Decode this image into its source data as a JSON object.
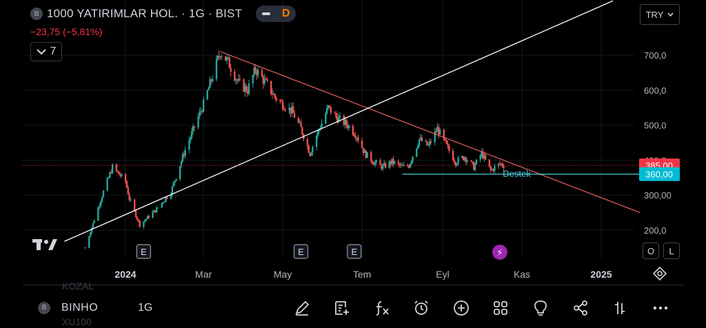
{
  "header": {
    "logo_letter": "B",
    "title": "1000 YATIRIMLAR HOL. · 1G · BIST",
    "delay_badge": "D",
    "change": "−23,75 (−5,81%)",
    "indicators_count": "7",
    "currency": "TRY"
  },
  "chart_data": {
    "type": "candlestick",
    "x_tick_labels": [
      "2024",
      "Mar",
      "May",
      "Tem",
      "Eyl",
      "Kas",
      "2025"
    ],
    "y_tick_labels": [
      "700,0",
      "600,0",
      "500,0",
      "400,0",
      "300,00",
      "200,0"
    ],
    "y_ticks": [
      700,
      600,
      500,
      400,
      300,
      200
    ],
    "ylim": [
      165,
      805
    ],
    "last_price": 385,
    "last_price_label": "385,00",
    "support_price": 360,
    "support_price_label": "360,00",
    "support_label": "Destek",
    "price_path": [
      [
        "2023-12-01",
        150
      ],
      [
        "2023-12-15",
        310
      ],
      [
        "2023-12-22",
        380
      ],
      [
        "2024-01-01",
        340
      ],
      [
        "2024-01-04",
        290
      ],
      [
        "2024-01-12",
        215
      ],
      [
        "2024-01-25",
        260
      ],
      [
        "2024-02-05",
        310
      ],
      [
        "2024-02-15",
        420
      ],
      [
        "2024-03-01",
        560
      ],
      [
        "2024-03-08",
        640
      ],
      [
        "2024-03-14",
        710
      ],
      [
        "2024-03-20",
        680
      ],
      [
        "2024-03-28",
        620
      ],
      [
        "2024-04-04",
        600
      ],
      [
        "2024-04-10",
        660
      ],
      [
        "2024-04-18",
        620
      ],
      [
        "2024-04-25",
        580
      ],
      [
        "2024-05-01",
        560
      ],
      [
        "2024-05-08",
        540
      ],
      [
        "2024-05-15",
        490
      ],
      [
        "2024-05-22",
        420
      ],
      [
        "2024-05-28",
        480
      ],
      [
        "2024-06-05",
        550
      ],
      [
        "2024-06-12",
        520
      ],
      [
        "2024-06-20",
        500
      ],
      [
        "2024-06-27",
        470
      ],
      [
        "2024-07-03",
        420
      ],
      [
        "2024-07-10",
        395
      ],
      [
        "2024-07-17",
        380
      ],
      [
        "2024-07-24",
        395
      ],
      [
        "2024-08-01",
        380
      ],
      [
        "2024-08-06",
        385
      ],
      [
        "2024-08-14",
        460
      ],
      [
        "2024-08-21",
        440
      ],
      [
        "2024-08-28",
        490
      ],
      [
        "2024-09-04",
        440
      ],
      [
        "2024-09-11",
        395
      ],
      [
        "2024-09-18",
        410
      ],
      [
        "2024-09-25",
        380
      ],
      [
        "2024-10-01",
        420
      ],
      [
        "2024-10-08",
        370
      ],
      [
        "2024-10-15",
        390
      ],
      [
        "2024-10-18",
        385
      ]
    ],
    "trendlines": [
      {
        "name": "resistance",
        "color": "#e05a5a",
        "from": [
          "2024-03-14",
          710
        ],
        "to": [
          "2025-01-31",
          250
        ]
      },
      {
        "name": "support",
        "color": "#ffffff",
        "from": [
          "2023-11-15",
          168
        ],
        "to": [
          "2025-01-10",
          855
        ]
      },
      {
        "name": "horizontal-support",
        "color": "#4dd0e1",
        "from": [
          "2024-08-01",
          360
        ],
        "to": [
          "2025-02-10",
          360
        ]
      }
    ],
    "events": [
      {
        "date": "2024-01-15",
        "label": "E"
      },
      {
        "date": "2024-05-15",
        "label": "E"
      },
      {
        "date": "2024-06-25",
        "label": "E"
      },
      {
        "date": "2024-10-15",
        "label": "⚡"
      }
    ],
    "x_ticks_dates": [
      "2024-01-01",
      "2024-03-01",
      "2024-05-01",
      "2024-07-01",
      "2024-09-01",
      "2024-11-01",
      "2025-01-01"
    ]
  },
  "controls": {
    "percent_label": "O",
    "log_label": "L"
  },
  "bottom": {
    "logo_letter": "B",
    "symbol": "BINHO",
    "interval": "1G",
    "ghost_above": "KOZAL",
    "ghost_below": "XU100"
  },
  "colors": {
    "up": "#26a69a",
    "down": "#ef5350",
    "price_tag": "#f23645",
    "support_tag": "#00bcd4"
  }
}
